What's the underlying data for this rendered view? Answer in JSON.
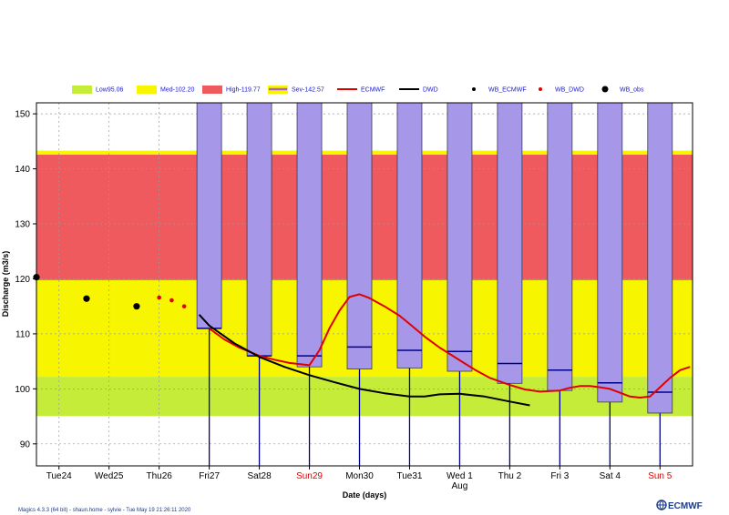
{
  "chart_data": {
    "type": "box",
    "xlabel": "Date (days)",
    "ylabel": "Discharge (m3/s)",
    "ylim": [
      86,
      152
    ],
    "yticks": [
      90,
      100,
      110,
      120,
      130,
      140,
      150
    ],
    "x_range_days": [
      23.55,
      36.65
    ],
    "xticks": [
      {
        "label": "Tue24",
        "day": 24,
        "color": "#000000"
      },
      {
        "label": "Wed25",
        "day": 25,
        "color": "#000000"
      },
      {
        "label": "Thu26",
        "day": 26,
        "color": "#000000"
      },
      {
        "label": "Fri27",
        "day": 27,
        "color": "#000000"
      },
      {
        "label": "Sat28",
        "day": 28,
        "color": "#000000"
      },
      {
        "label": "Sun29",
        "day": 29,
        "color": "#e00000"
      },
      {
        "label": "Mon30",
        "day": 30,
        "color": "#000000"
      },
      {
        "label": "Tue31",
        "day": 31,
        "color": "#000000"
      },
      {
        "label": "Wed 1",
        "day": 32,
        "color": "#000000"
      },
      {
        "label": "Thu 2",
        "day": 33,
        "color": "#000000"
      },
      {
        "label": "Fri 3",
        "day": 34,
        "color": "#000000"
      },
      {
        "label": "Sat 4",
        "day": 35,
        "color": "#000000"
      },
      {
        "label": "Sun 5",
        "day": 36,
        "color": "#e00000"
      }
    ],
    "month_label": {
      "text": "Aug",
      "day": 32
    },
    "thresholds": [
      {
        "name": "Low95.06",
        "from": 95.06,
        "to": 102.2,
        "color": "#c6ec3a"
      },
      {
        "name": "Med-102.20",
        "from": 102.2,
        "to": 119.77,
        "color": "#f7f500"
      },
      {
        "name": "High-119.77",
        "from": 119.77,
        "to": 142.57,
        "color": "#ee5a5e"
      },
      {
        "name": "Sev-142.57",
        "from": 142.57,
        "to": 143.3,
        "color": "#f7f500"
      }
    ],
    "legend": [
      {
        "label": "Low95.06",
        "kind": "swatch",
        "color": "#c6ec3a"
      },
      {
        "label": "Med-102.20",
        "kind": "swatch",
        "color": "#f7f500"
      },
      {
        "label": "High-119.77",
        "kind": "swatch",
        "color": "#ee5a5e"
      },
      {
        "label": "Sev-142.57",
        "kind": "sev",
        "color": "#f7f500",
        "line_color": "#b05fd0"
      },
      {
        "label": "ECMWF",
        "kind": "line",
        "color": "#e00000"
      },
      {
        "label": "DWD",
        "kind": "line",
        "color": "#000000"
      },
      {
        "label": "WB_ECMWF",
        "kind": "dot",
        "color": "#000000"
      },
      {
        "label": "WB_DWD",
        "kind": "dot",
        "color": "#e00000"
      },
      {
        "label": "WB_obs",
        "kind": "bigdot",
        "color": "#000000"
      }
    ],
    "boxes": [
      {
        "day": 27,
        "low": 86,
        "q1": 111.0,
        "median": 111.0,
        "q3": 152,
        "high": 152
      },
      {
        "day": 28,
        "low": 86,
        "q1": 106.0,
        "median": 106.0,
        "q3": 152,
        "high": 152
      },
      {
        "day": 29,
        "low": 86,
        "q1": 104.0,
        "median": 106.0,
        "q3": 152,
        "high": 152
      },
      {
        "day": 30,
        "low": 86,
        "q1": 103.6,
        "median": 107.6,
        "q3": 152,
        "high": 152
      },
      {
        "day": 31,
        "low": 86,
        "q1": 103.8,
        "median": 107.0,
        "q3": 152,
        "high": 152
      },
      {
        "day": 32,
        "low": 86,
        "q1": 103.2,
        "median": 106.8,
        "q3": 152,
        "high": 152
      },
      {
        "day": 33,
        "low": 86,
        "q1": 101.0,
        "median": 104.6,
        "q3": 152,
        "high": 152
      },
      {
        "day": 34,
        "low": 86,
        "q1": 99.7,
        "median": 103.4,
        "q3": 152,
        "high": 152
      },
      {
        "day": 35,
        "low": 86,
        "q1": 97.6,
        "median": 101.1,
        "q3": 152,
        "high": 152
      },
      {
        "day": 36,
        "low": 86,
        "q1": 95.6,
        "median": 99.4,
        "q3": 152,
        "high": 152
      }
    ],
    "box_color": "#a797e8",
    "series": [
      {
        "name": "ECMWF",
        "color": "#e00000",
        "x": [
          27.0,
          27.3,
          27.6,
          28.0,
          28.3,
          28.6,
          29.0,
          29.2,
          29.4,
          29.6,
          29.8,
          30.0,
          30.2,
          30.5,
          30.8,
          31.0,
          31.3,
          31.6,
          32.0,
          32.3,
          32.6,
          33.0,
          33.3,
          33.6,
          34.0,
          34.2,
          34.4,
          34.6,
          34.8,
          35.0,
          35.2,
          35.4,
          35.6,
          35.8,
          36.0,
          36.2,
          36.4,
          36.6
        ],
        "y": [
          111.0,
          109.0,
          107.5,
          106.0,
          105.3,
          104.7,
          104.3,
          107.0,
          111.0,
          114.2,
          116.7,
          117.2,
          116.5,
          115.0,
          113.3,
          111.8,
          109.5,
          107.5,
          105.2,
          103.5,
          102.0,
          100.7,
          99.9,
          99.5,
          99.7,
          100.2,
          100.5,
          100.5,
          100.3,
          100.0,
          99.3,
          98.6,
          98.4,
          98.6,
          100.3,
          102.0,
          103.4,
          104.0
        ]
      },
      {
        "name": "DWD",
        "color": "#000000",
        "x": [
          26.8,
          27.0,
          27.5,
          28.0,
          28.5,
          29.0,
          29.5,
          30.0,
          30.5,
          31.0,
          31.3,
          31.6,
          32.0,
          32.5,
          33.0,
          33.4
        ],
        "y": [
          113.5,
          111.5,
          108.3,
          105.8,
          104.0,
          102.5,
          101.2,
          100.0,
          99.2,
          98.6,
          98.6,
          99.0,
          99.1,
          98.6,
          97.7,
          97.0
        ]
      }
    ],
    "wb_dwd": {
      "x": [
        26.0,
        26.25,
        26.5
      ],
      "y": [
        116.6,
        116.1,
        115.0
      ]
    },
    "wb_obs": {
      "x": [
        23.55,
        24.55,
        25.55
      ],
      "y": [
        120.3,
        116.4,
        115.0
      ]
    }
  },
  "footer": {
    "left": "Magics 4.3.3 (64 bit) - shaun.home - sylvie - Tue May 19 21:26:11 2020",
    "logo": "ECMWF"
  }
}
